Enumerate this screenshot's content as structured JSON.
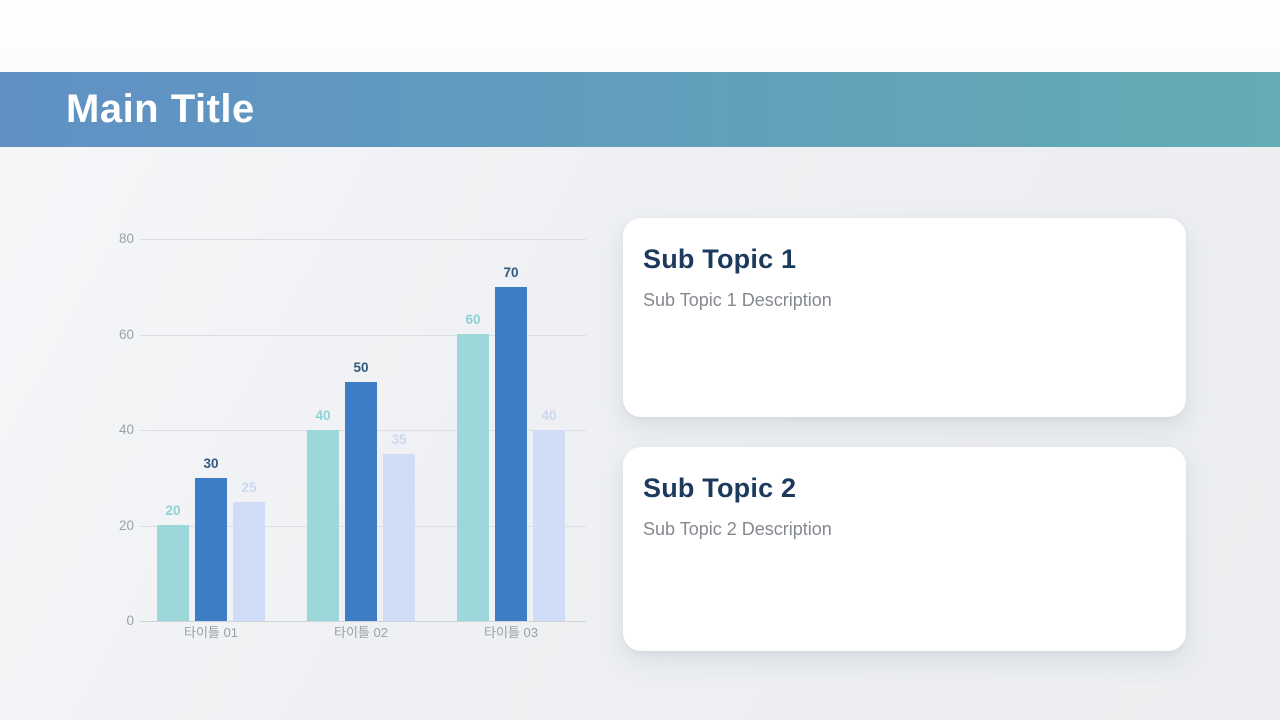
{
  "slide": {
    "title": "Main Title"
  },
  "theme": {
    "header_gradient_left": "#6090c5",
    "header_gradient_right": "#63acb3",
    "background": "#eef0f3",
    "card_background": "#ffffff",
    "card_title_color": "#1c3a5e",
    "card_description_color": "#84888f",
    "tick_label_color": "#9aa0a8",
    "gridline_color": "#dcdee2"
  },
  "chart_data": {
    "type": "bar",
    "title": "",
    "xlabel": "",
    "ylabel": "",
    "categories": [
      "타이틀 01",
      "타이틀 02",
      "타이틀 03"
    ],
    "series": [
      {
        "name": "series-teal",
        "color": "#9cd8da",
        "label_color": "#8ed2d5",
        "values": [
          20,
          40,
          60
        ]
      },
      {
        "name": "series-blue",
        "color": "#3d7dc5",
        "label_color": "#33597f",
        "values": [
          30,
          50,
          70
        ]
      },
      {
        "name": "series-light",
        "color": "#cfddf7",
        "label_color": "#ccd8f0",
        "values": [
          25,
          35,
          40
        ]
      }
    ],
    "y_ticks": [
      0,
      20,
      40,
      60,
      80
    ],
    "ylim": [
      0,
      80
    ],
    "grid": true,
    "legend_position": "none",
    "value_labels": true
  },
  "cards": [
    {
      "title": "Sub Topic 1",
      "description": "Sub Topic 1 Description"
    },
    {
      "title": "Sub Topic 2",
      "description": "Sub Topic 2 Description"
    }
  ]
}
